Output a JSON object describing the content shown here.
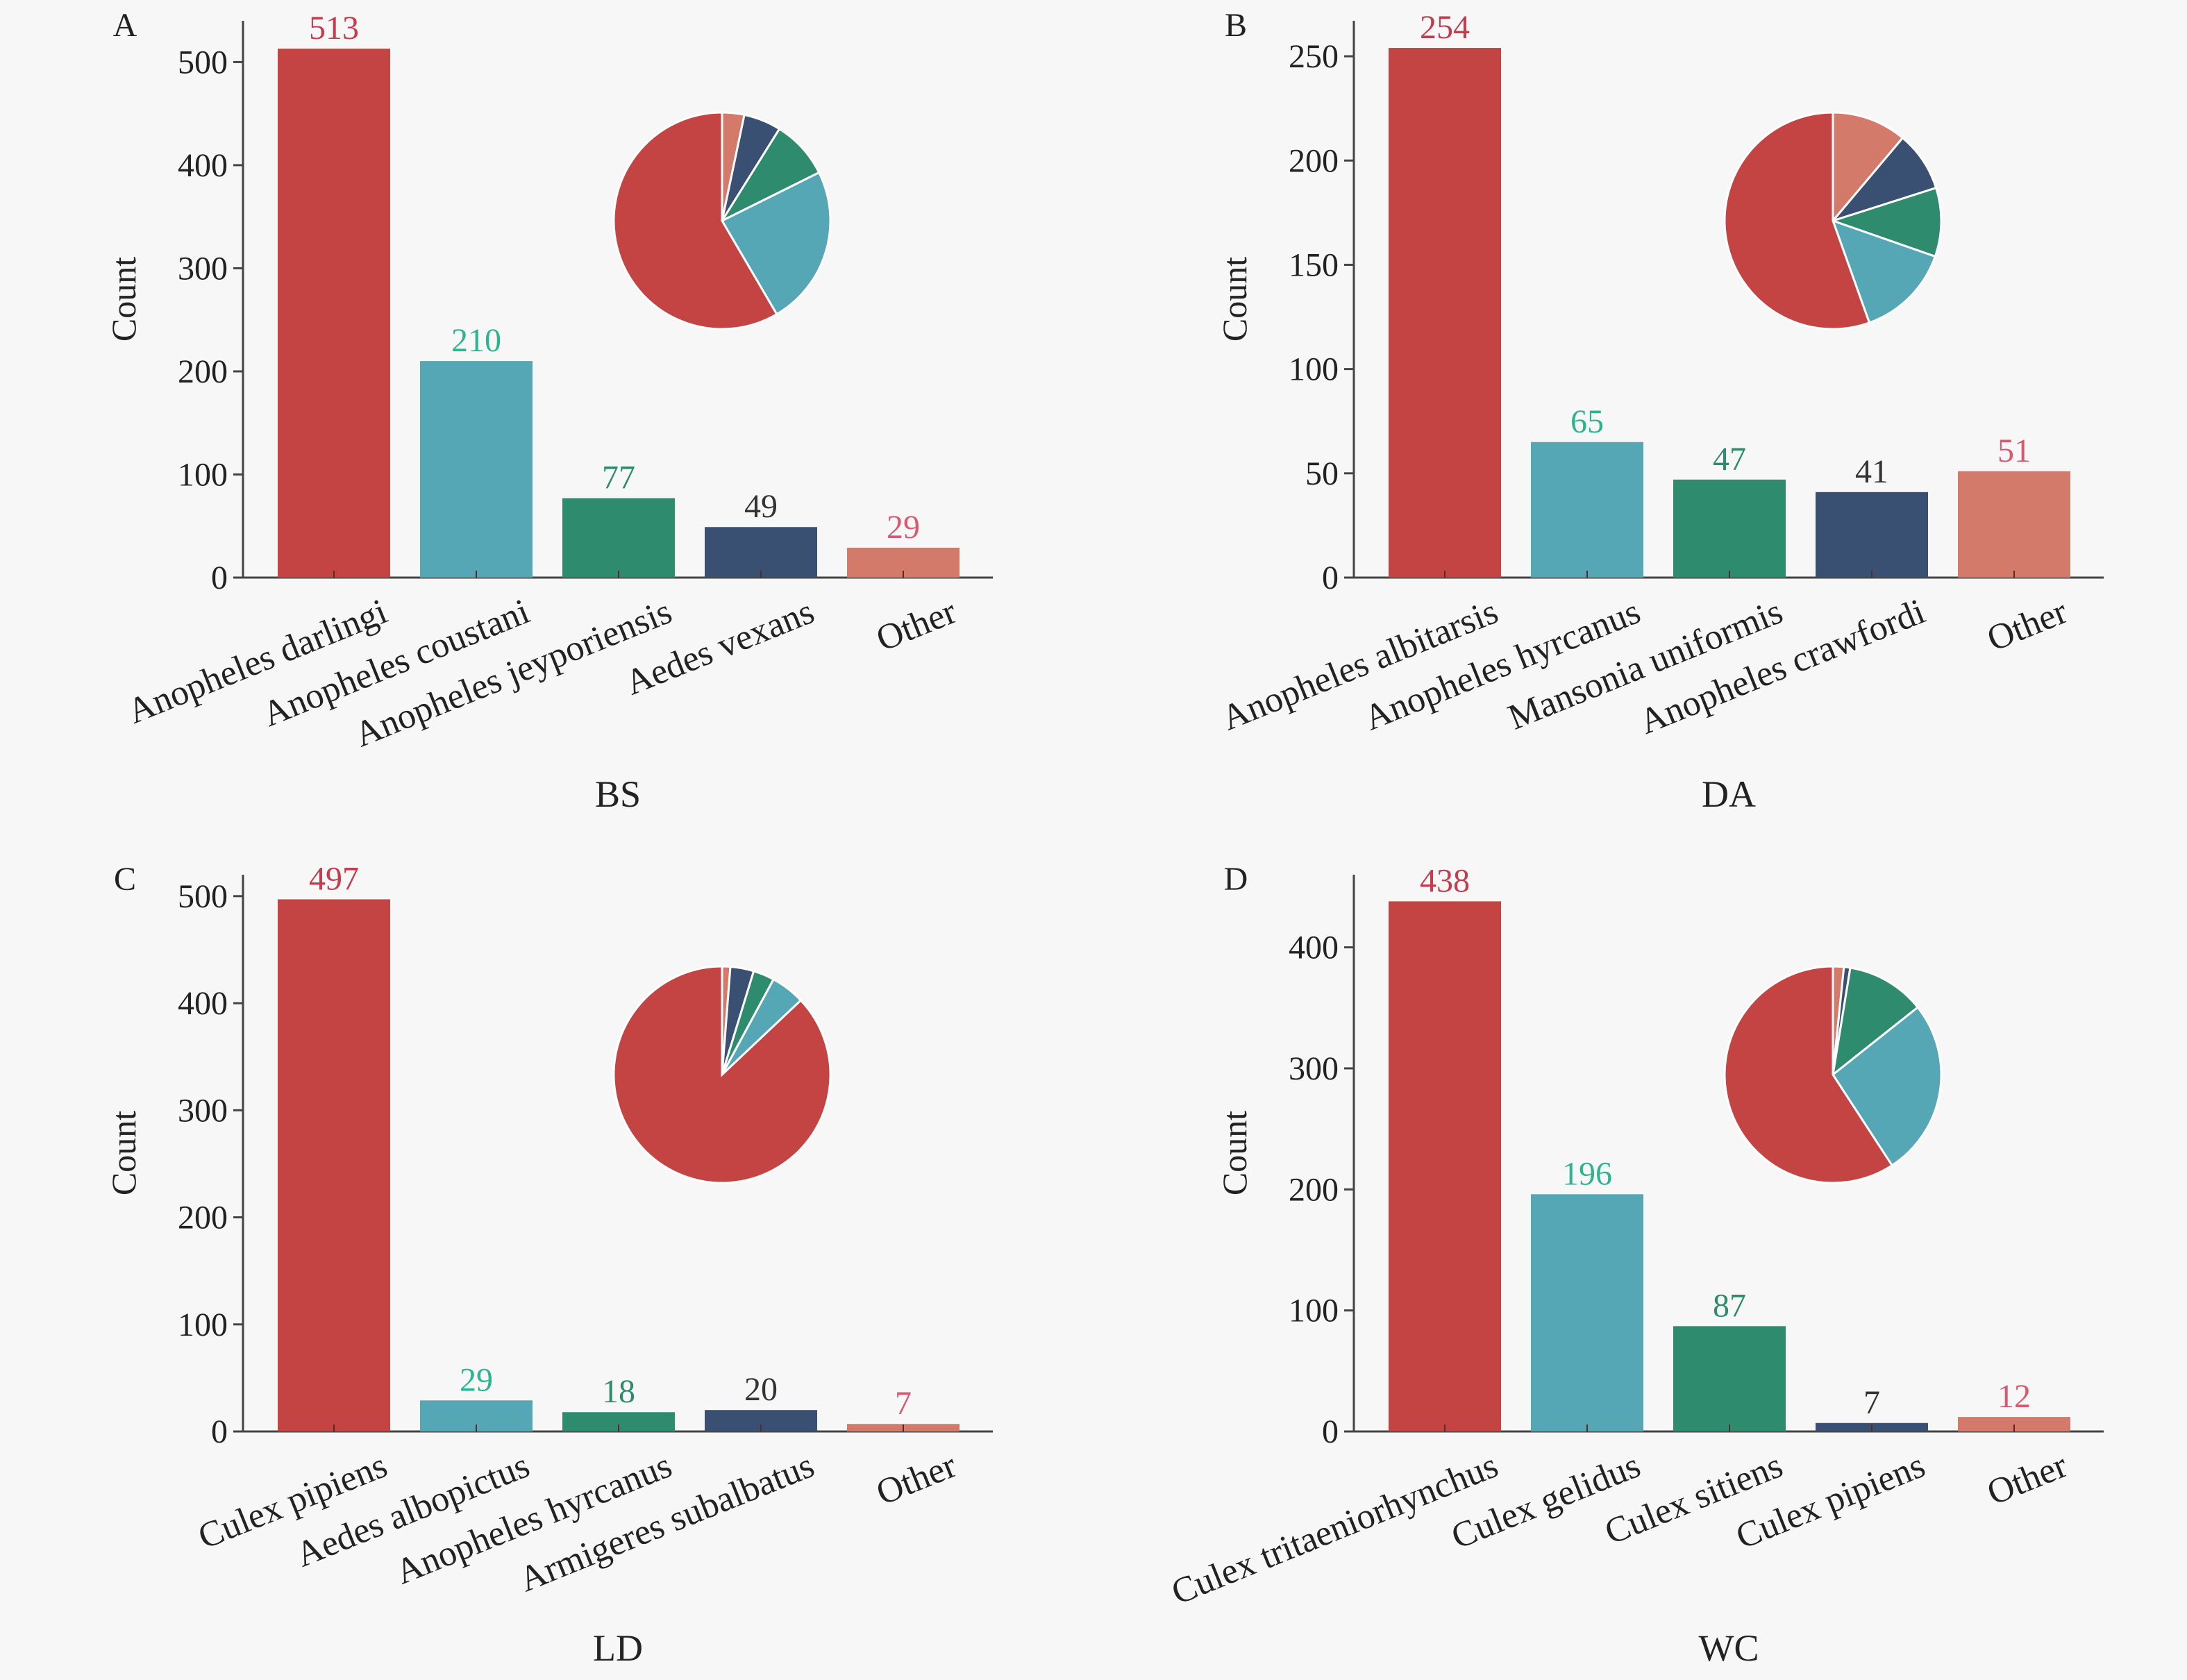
{
  "colors": {
    "red": "#c44444",
    "teal": "#55a7b6",
    "green": "#2e8b6e",
    "navy": "#3a5073",
    "salmon": "#d47a6a",
    "axis": "#444444",
    "label_red": "#c43c4e",
    "label_teal": "#2bb48f",
    "label_green": "#2e8b6e",
    "label_dark": "#333333",
    "label_pink": "#d85a72"
  },
  "chart_data": [
    {
      "type": "bar",
      "panel": "A",
      "site": "BS",
      "ylabel": "Count",
      "ylim": [
        0,
        540
      ],
      "yticks": [
        0,
        100,
        200,
        300,
        400,
        500
      ],
      "categories": [
        "Anopheles darlingi",
        "Anopheles coustani",
        "Anopheles jeyporiensis",
        "Aedes vexans",
        "Other"
      ],
      "values": [
        513,
        210,
        77,
        49,
        29
      ],
      "value_labels": [
        "513",
        "210",
        "77",
        "49",
        "29"
      ],
      "pie": {
        "clockwise_from_top": [
          "Other",
          "Aedes vexans",
          "Anopheles jeyporiensis",
          "Anopheles coustani",
          "Anopheles darlingi"
        ],
        "values": [
          29,
          49,
          77,
          210,
          513
        ]
      }
    },
    {
      "type": "bar",
      "panel": "B",
      "site": "DA",
      "ylabel": "Count",
      "ylim": [
        0,
        267
      ],
      "yticks": [
        0,
        50,
        100,
        150,
        200,
        250
      ],
      "categories": [
        "Anopheles albitarsis",
        "Anopheles hyrcanus",
        "Mansonia uniformis",
        "Anopheles crawfordi",
        "Other"
      ],
      "values": [
        254,
        65,
        47,
        41,
        51
      ],
      "value_labels": [
        "254",
        "65",
        "47",
        "41",
        "51"
      ],
      "pie": {
        "clockwise_from_top": [
          "Other",
          "Anopheles crawfordi",
          "Mansonia uniformis",
          "Anopheles hyrcanus",
          "Anopheles albitarsis"
        ],
        "values": [
          51,
          41,
          47,
          65,
          254
        ]
      }
    },
    {
      "type": "bar",
      "panel": "C",
      "site": "LD",
      "ylabel": "Count",
      "ylim": [
        0,
        520
      ],
      "yticks": [
        0,
        100,
        200,
        300,
        400,
        500
      ],
      "categories": [
        "Culex pipiens",
        "Aedes albopictus",
        "Anopheles hyrcanus",
        "Armigeres subalbatus",
        "Other"
      ],
      "values": [
        497,
        29,
        18,
        20,
        7
      ],
      "value_labels": [
        "497",
        "29",
        "18",
        "20",
        "7"
      ],
      "pie": {
        "clockwise_from_top": [
          "Other",
          "Armigeres subalbatus",
          "Anopheles hyrcanus",
          "Aedes albopictus",
          "Culex pipiens"
        ],
        "values": [
          7,
          20,
          18,
          29,
          497
        ]
      }
    },
    {
      "type": "bar",
      "panel": "D",
      "site": "WC",
      "ylabel": "Count",
      "ylim": [
        0,
        460
      ],
      "yticks": [
        0,
        100,
        200,
        300,
        400
      ],
      "categories": [
        "Culex tritaeniorhynchus",
        "Culex gelidus",
        "Culex sitiens",
        "Culex pipiens",
        "Other"
      ],
      "values": [
        438,
        196,
        87,
        7,
        12
      ],
      "value_labels": [
        "438",
        "196",
        "87",
        "7",
        "12"
      ],
      "pie": {
        "clockwise_from_top": [
          "Other",
          "Culex pipiens",
          "Culex sitiens",
          "Culex gelidus",
          "Culex tritaeniorhynchus"
        ],
        "values": [
          12,
          7,
          87,
          196,
          438
        ]
      }
    }
  ]
}
